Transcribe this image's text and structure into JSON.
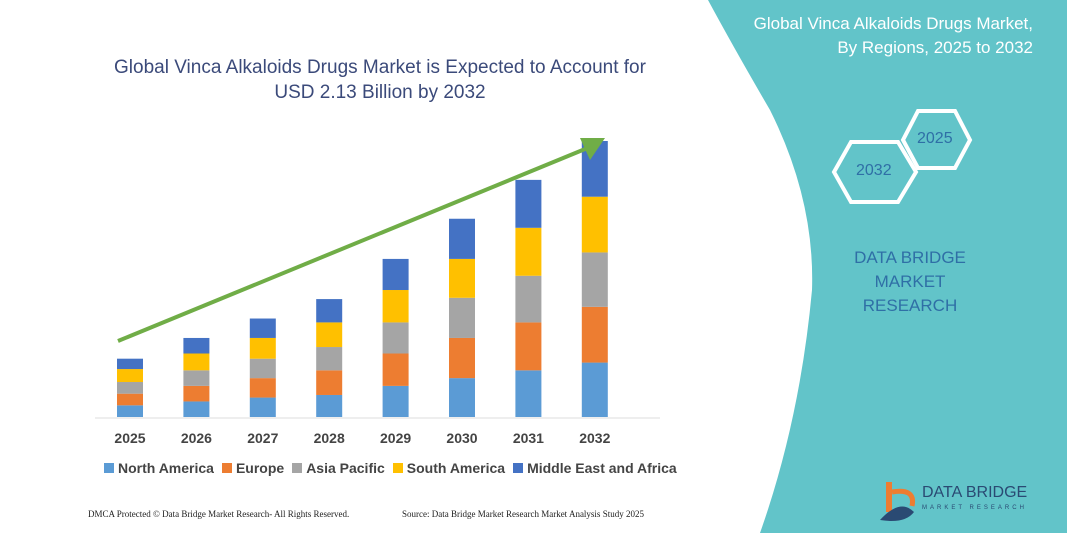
{
  "header": {
    "title": "Global Vinca Alkaloids Drugs Market is Expected to Account for USD 2.13 Billion by 2032"
  },
  "side_panel": {
    "title_line1": "Global Vinca Alkaloids Drugs Market,",
    "title_line2": "By Regions, 2025 to 2032",
    "hex_start": "2025",
    "hex_end": "2032",
    "brand_line1": "DATA BRIDGE MARKET",
    "brand_line2": "RESEARCH",
    "color": "#62C4C9"
  },
  "footer": {
    "dmca": "DMCA Protected © Data Bridge Market Research- All Rights Reserved.",
    "source": "Source: Data Bridge Market Research Market Analysis Study 2025",
    "logo_name": "DATA BRIDGE",
    "logo_sub": "MARKET RESEARCH"
  },
  "chart_data": {
    "type": "bar",
    "stacked": true,
    "title": "Global Vinca Alkaloids Drugs Market is Expected to Account for USD 2.13 Billion by 2032",
    "categories": [
      "2025",
      "2026",
      "2027",
      "2028",
      "2029",
      "2030",
      "2031",
      "2032"
    ],
    "unit": "USD Billion",
    "grid": false,
    "legend": "bottom",
    "trend_arrow_color": "#70AD47",
    "series": [
      {
        "name": "North America",
        "color": "#5B9BD5",
        "values": [
          0.09,
          0.12,
          0.15,
          0.17,
          0.24,
          0.3,
          0.36,
          0.42
        ]
      },
      {
        "name": "Europe",
        "color": "#ED7D31",
        "values": [
          0.09,
          0.12,
          0.15,
          0.19,
          0.25,
          0.31,
          0.37,
          0.43
        ]
      },
      {
        "name": "Asia Pacific",
        "color": "#A5A5A5",
        "values": [
          0.09,
          0.12,
          0.15,
          0.18,
          0.24,
          0.31,
          0.36,
          0.42
        ]
      },
      {
        "name": "South America",
        "color": "#FFC000",
        "values": [
          0.1,
          0.13,
          0.16,
          0.19,
          0.25,
          0.3,
          0.37,
          0.43
        ]
      },
      {
        "name": "Middle East and Africa",
        "color": "#4472C4",
        "values": [
          0.08,
          0.12,
          0.15,
          0.18,
          0.24,
          0.31,
          0.37,
          0.43
        ]
      }
    ]
  }
}
